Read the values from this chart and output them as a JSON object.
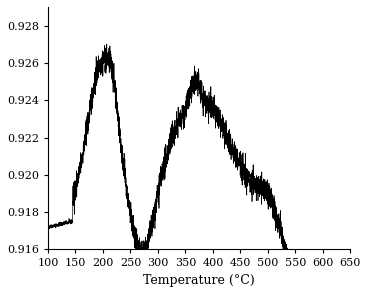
{
  "title": "",
  "xlabel": "Temperature (°C)",
  "ylabel": "",
  "xlim": [
    100,
    650
  ],
  "ylim": [
    0.916,
    0.929
  ],
  "xticks": [
    100,
    150,
    200,
    250,
    300,
    350,
    400,
    450,
    500,
    550,
    600,
    650
  ],
  "yticks": [
    0.916,
    0.918,
    0.92,
    0.922,
    0.924,
    0.926,
    0.928
  ],
  "ytick_labels": [
    "0.916",
    "0.918",
    "0.920",
    "0.922",
    "0.924",
    "0.926",
    "0.928"
  ],
  "line_color": "#000000",
  "background_color": "#ffffff",
  "noise_seed": 42,
  "noise_amplitude": 0.00035
}
